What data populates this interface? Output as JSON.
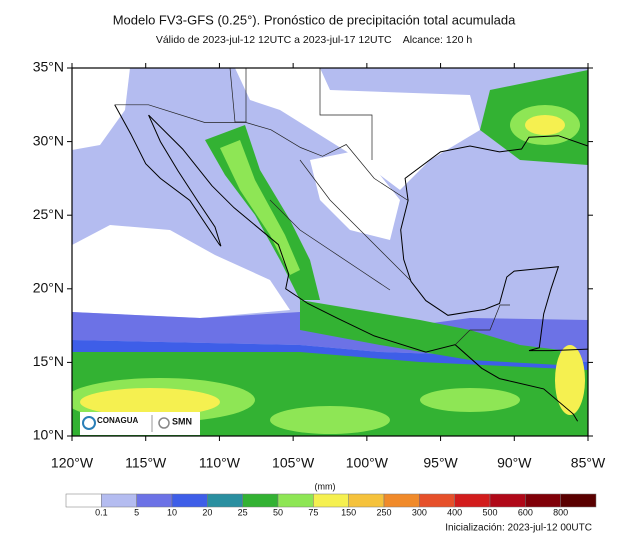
{
  "header": {
    "title": "Modelo FV3-GFS (0.25°). Pronóstico de precipitación total acumulada",
    "subtitle": "Válido de 2023-jul-12 12UTC a 2023-jul-17 12UTC    Alcance: 120 h"
  },
  "map": {
    "lat_labels": [
      "35°N",
      "30°N",
      "25°N",
      "20°N",
      "15°N",
      "10°N"
    ],
    "lon_labels": [
      "120°W",
      "115°W",
      "110°W",
      "105°W",
      "100°W",
      "95°W",
      "90°W",
      "85°W"
    ],
    "logos": [
      "CONAGUA",
      "SMN"
    ]
  },
  "colorbar": {
    "unit": "(mm)",
    "labels": [
      "0.1",
      "5",
      "10",
      "20",
      "25",
      "50",
      "75",
      "150",
      "250",
      "300",
      "400",
      "500",
      "600",
      "800"
    ],
    "colors": [
      "#ffffff",
      "#b4bcf0",
      "#6c72e6",
      "#3e5ee8",
      "#2a8fa0",
      "#33b233",
      "#8ee655",
      "#f5f050",
      "#f5c23c",
      "#f08a2a",
      "#e6502a",
      "#d21c1c",
      "#b00818",
      "#800008",
      "#5a0000"
    ]
  },
  "footer": {
    "init": "Inicialización: 2023-jul-12 00UTC"
  }
}
